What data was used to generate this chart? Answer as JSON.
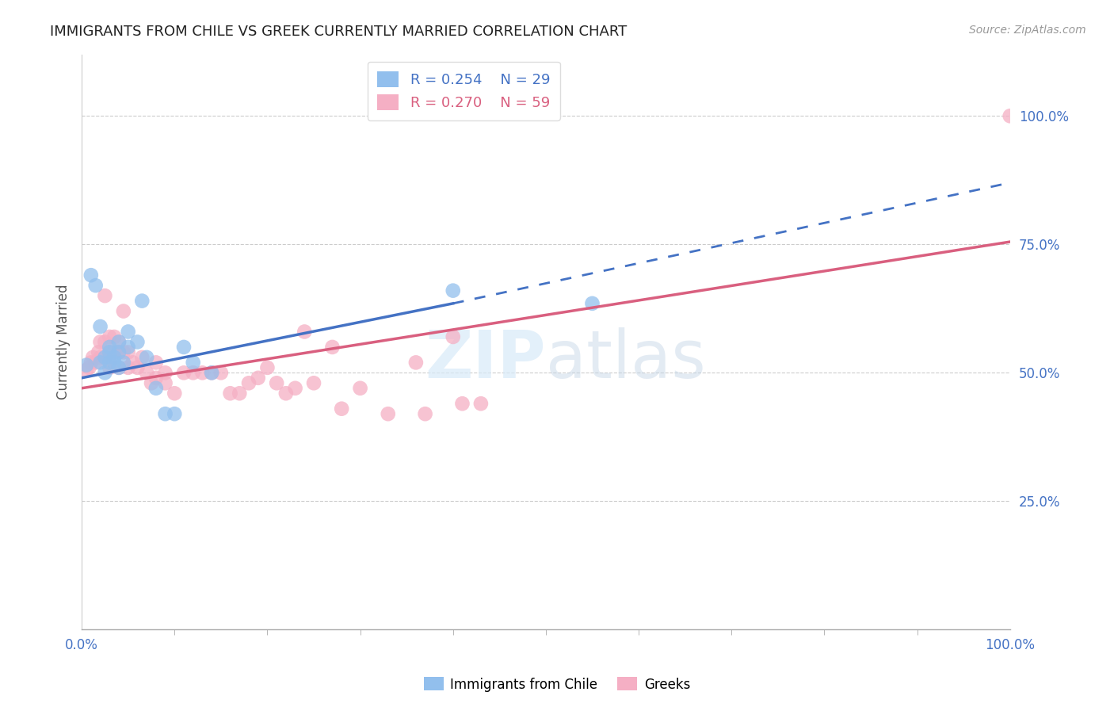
{
  "title": "IMMIGRANTS FROM CHILE VS GREEK CURRENTLY MARRIED CORRELATION CHART",
  "source_text": "Source: ZipAtlas.com",
  "ylabel": "Currently Married",
  "x_min": 0.0,
  "x_max": 1.0,
  "y_min": 0.0,
  "y_max": 1.12,
  "y_ticks": [
    0.25,
    0.5,
    0.75,
    1.0
  ],
  "y_tick_labels": [
    "25.0%",
    "50.0%",
    "75.0%",
    "100.0%"
  ],
  "x_tick_labels": [
    "0.0%",
    "100.0%"
  ],
  "legend_r_chile": "R = 0.254",
  "legend_n_chile": "N = 29",
  "legend_r_greek": "R = 0.270",
  "legend_n_greek": "N = 59",
  "chile_color": "#92bfed",
  "greek_color": "#f5afc4",
  "chile_line_color": "#4472c4",
  "greek_line_color": "#d95f7f",
  "chile_line_start_x": 0.0,
  "chile_line_start_y": 0.49,
  "chile_line_solid_end_x": 0.4,
  "chile_line_solid_end_y": 0.635,
  "chile_line_dash_end_x": 1.0,
  "chile_line_dash_end_y": 0.87,
  "greek_line_start_x": 0.0,
  "greek_line_start_y": 0.47,
  "greek_line_end_x": 1.0,
  "greek_line_end_y": 0.755,
  "chile_scatter_x": [
    0.005,
    0.01,
    0.015,
    0.02,
    0.02,
    0.025,
    0.025,
    0.03,
    0.03,
    0.03,
    0.035,
    0.035,
    0.04,
    0.04,
    0.04,
    0.045,
    0.05,
    0.05,
    0.06,
    0.065,
    0.07,
    0.08,
    0.09,
    0.1,
    0.11,
    0.12,
    0.14,
    0.4,
    0.55
  ],
  "chile_scatter_y": [
    0.515,
    0.69,
    0.67,
    0.52,
    0.59,
    0.53,
    0.5,
    0.54,
    0.52,
    0.55,
    0.53,
    0.52,
    0.56,
    0.54,
    0.51,
    0.52,
    0.58,
    0.55,
    0.56,
    0.64,
    0.53,
    0.47,
    0.42,
    0.42,
    0.55,
    0.52,
    0.5,
    0.66,
    0.635
  ],
  "greek_scatter_x": [
    0.005,
    0.008,
    0.01,
    0.012,
    0.015,
    0.018,
    0.02,
    0.02,
    0.025,
    0.025,
    0.025,
    0.03,
    0.03,
    0.03,
    0.03,
    0.035,
    0.035,
    0.04,
    0.04,
    0.04,
    0.045,
    0.045,
    0.05,
    0.05,
    0.055,
    0.06,
    0.065,
    0.07,
    0.075,
    0.08,
    0.08,
    0.09,
    0.09,
    0.1,
    0.11,
    0.12,
    0.13,
    0.14,
    0.15,
    0.16,
    0.17,
    0.18,
    0.19,
    0.2,
    0.21,
    0.22,
    0.23,
    0.24,
    0.25,
    0.27,
    0.28,
    0.3,
    0.33,
    0.36,
    0.37,
    0.4,
    0.41,
    0.43,
    1.0
  ],
  "greek_scatter_y": [
    0.505,
    0.51,
    0.52,
    0.53,
    0.52,
    0.54,
    0.53,
    0.56,
    0.53,
    0.56,
    0.65,
    0.51,
    0.52,
    0.54,
    0.57,
    0.54,
    0.57,
    0.51,
    0.54,
    0.56,
    0.54,
    0.62,
    0.51,
    0.54,
    0.52,
    0.51,
    0.53,
    0.5,
    0.48,
    0.49,
    0.52,
    0.5,
    0.48,
    0.46,
    0.5,
    0.5,
    0.5,
    0.5,
    0.5,
    0.46,
    0.46,
    0.48,
    0.49,
    0.51,
    0.48,
    0.46,
    0.47,
    0.58,
    0.48,
    0.55,
    0.43,
    0.47,
    0.42,
    0.52,
    0.42,
    0.57,
    0.44,
    0.44,
    1.0
  ]
}
